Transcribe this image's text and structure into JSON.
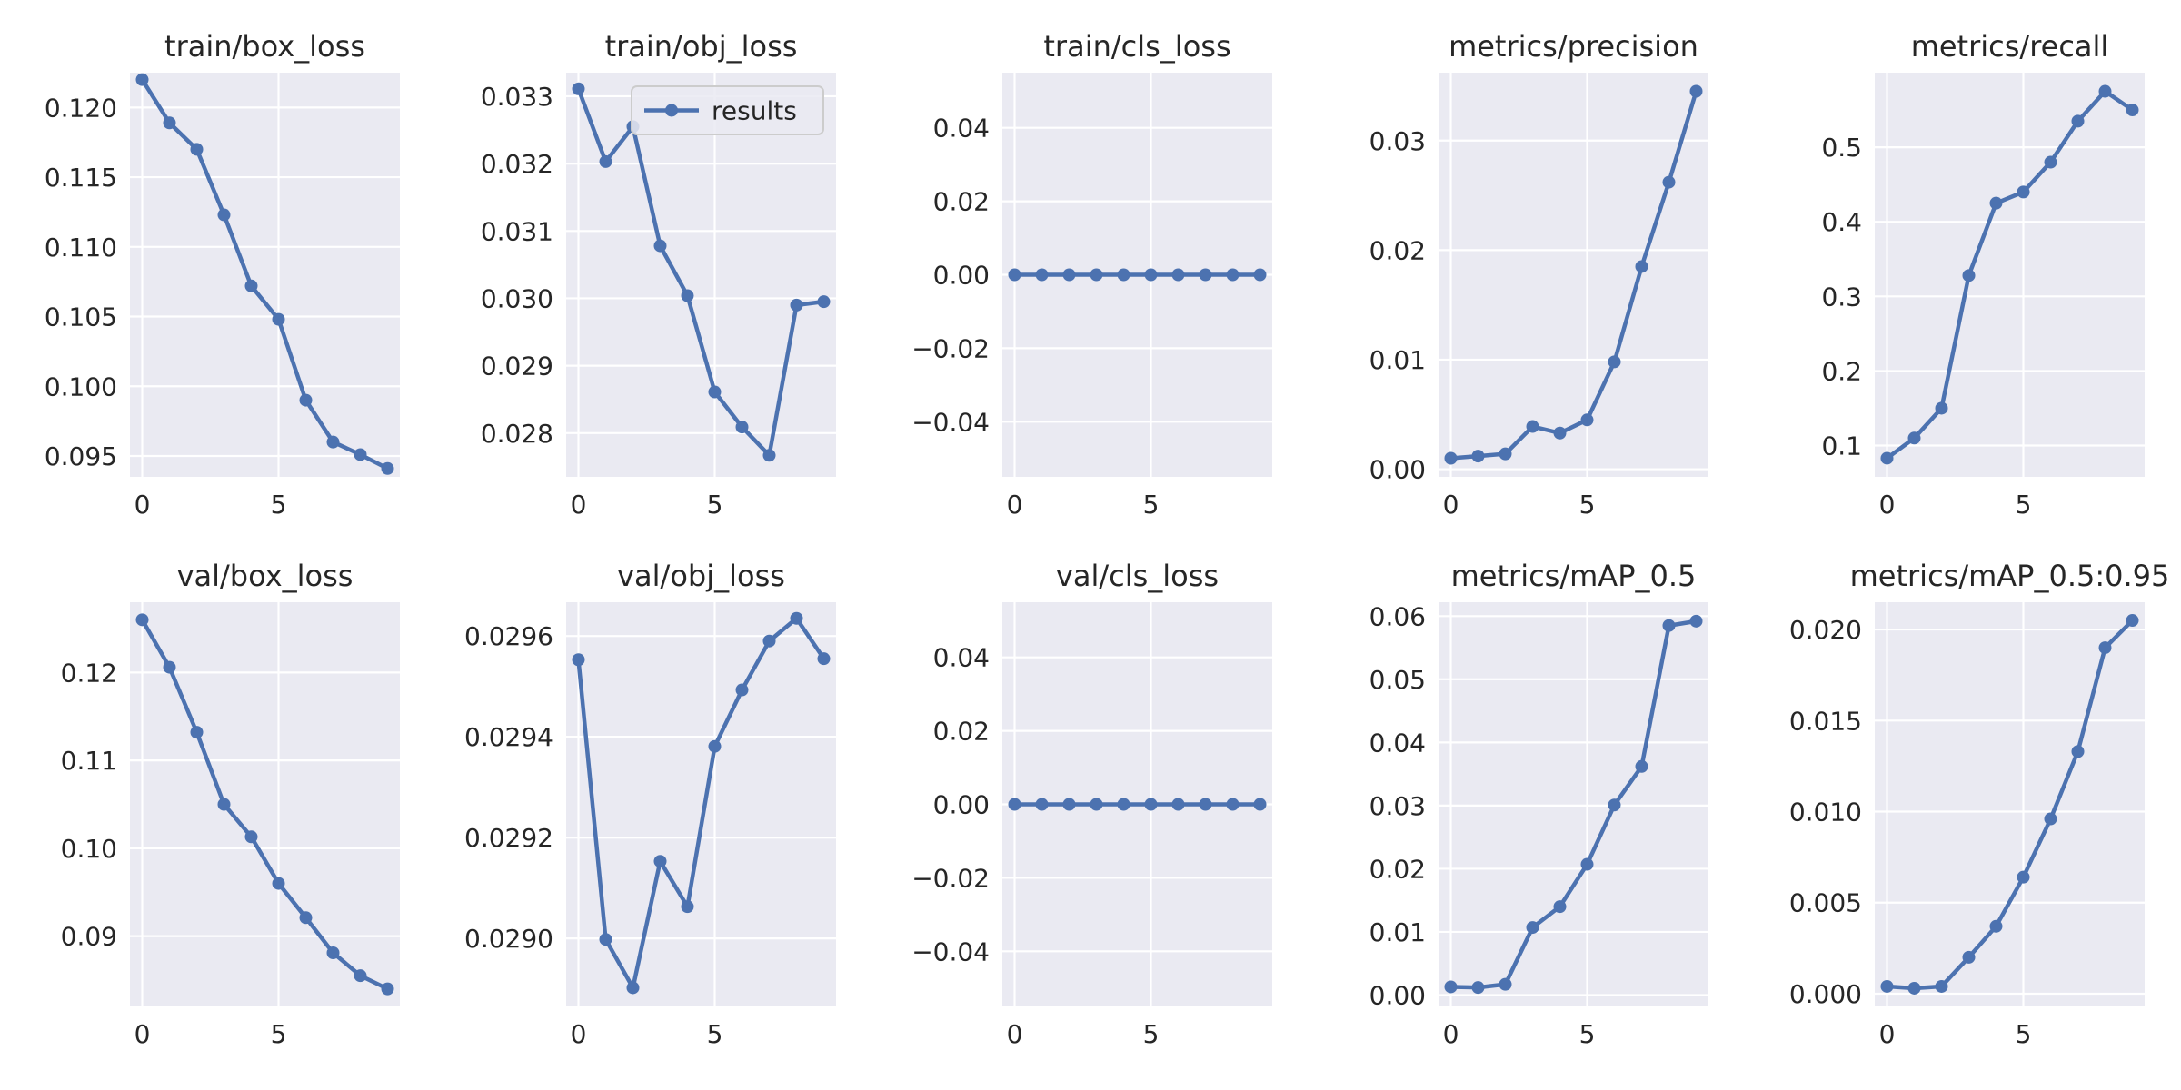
{
  "colors": {
    "line": "#4c72b0",
    "panel_bg": "#eaeaf2",
    "grid": "#ffffff",
    "text": "#262626",
    "legend_bg": "#eaeaf2",
    "legend_border": "#cccccc"
  },
  "legend": {
    "label": "results",
    "placement": "upper-right of train/obj_loss"
  },
  "chart_data": [
    {
      "type": "line",
      "title": "train/box_loss",
      "x": [
        0,
        1,
        2,
        3,
        4,
        5,
        6,
        7,
        8,
        9
      ],
      "values": [
        0.122,
        0.1189,
        0.117,
        0.1123,
        0.1072,
        0.1048,
        0.099,
        0.096,
        0.0951,
        0.0941
      ],
      "ylim": [
        0.0935,
        0.1225
      ],
      "yticks": [
        0.095,
        0.1,
        0.105,
        0.11,
        0.115,
        0.12
      ],
      "yticklabels": [
        "0.095",
        "0.100",
        "0.105",
        "0.110",
        "0.115",
        "0.120"
      ],
      "xlim": [
        -0.45,
        9.45
      ],
      "xticks": [
        0,
        5
      ],
      "xticklabels": [
        "0",
        "5"
      ]
    },
    {
      "type": "line",
      "title": "train/obj_loss",
      "x": [
        0,
        1,
        2,
        3,
        4,
        5,
        6,
        7,
        8,
        9
      ],
      "values": [
        0.03311,
        0.03203,
        0.03255,
        0.03078,
        0.03004,
        0.02861,
        0.02809,
        0.02767,
        0.0299,
        0.02995
      ],
      "ylim": [
        0.02735,
        0.03335
      ],
      "yticks": [
        0.028,
        0.029,
        0.03,
        0.031,
        0.032,
        0.033
      ],
      "yticklabels": [
        "0.028",
        "0.029",
        "0.030",
        "0.031",
        "0.032",
        "0.033"
      ],
      "xlim": [
        -0.45,
        9.45
      ],
      "xticks": [
        0,
        5
      ],
      "xticklabels": [
        "0",
        "5"
      ],
      "legend": true
    },
    {
      "type": "line",
      "title": "train/cls_loss",
      "x": [
        0,
        1,
        2,
        3,
        4,
        5,
        6,
        7,
        8,
        9
      ],
      "values": [
        0,
        0,
        0,
        0,
        0,
        0,
        0,
        0,
        0,
        0
      ],
      "ylim": [
        -0.055,
        0.055
      ],
      "yticks": [
        -0.04,
        -0.02,
        0,
        0.02,
        0.04
      ],
      "yticklabels": [
        "−0.04",
        "−0.02",
        "0.00",
        "0.02",
        "0.04"
      ],
      "xlim": [
        -0.45,
        9.45
      ],
      "xticks": [
        0,
        5
      ],
      "xticklabels": [
        "0",
        "5"
      ]
    },
    {
      "type": "line",
      "title": "metrics/precision",
      "x": [
        0,
        1,
        2,
        3,
        4,
        5,
        6,
        7,
        8,
        9
      ],
      "values": [
        0.001,
        0.0012,
        0.0014,
        0.0039,
        0.0033,
        0.0045,
        0.0098,
        0.0185,
        0.0262,
        0.0345
      ],
      "ylim": [
        -0.0007,
        0.0362
      ],
      "yticks": [
        0,
        0.01,
        0.02,
        0.03
      ],
      "yticklabels": [
        "0.00",
        "0.01",
        "0.02",
        "0.03"
      ],
      "xlim": [
        -0.45,
        9.45
      ],
      "xticks": [
        0,
        5
      ],
      "xticklabels": [
        "0",
        "5"
      ]
    },
    {
      "type": "line",
      "title": "metrics/recall",
      "x": [
        0,
        1,
        2,
        3,
        4,
        5,
        6,
        7,
        8,
        9
      ],
      "values": [
        0.083,
        0.11,
        0.15,
        0.328,
        0.425,
        0.44,
        0.48,
        0.535,
        0.575,
        0.55
      ],
      "ylim": [
        0.058,
        0.6
      ],
      "yticks": [
        0.1,
        0.2,
        0.3,
        0.4,
        0.5
      ],
      "yticklabels": [
        "0.1",
        "0.2",
        "0.3",
        "0.4",
        "0.5"
      ],
      "xlim": [
        -0.45,
        9.45
      ],
      "xticks": [
        0,
        5
      ],
      "xticklabels": [
        "0",
        "5"
      ]
    },
    {
      "type": "line",
      "title": "val/box_loss",
      "x": [
        0,
        1,
        2,
        3,
        4,
        5,
        6,
        7,
        8,
        9
      ],
      "values": [
        0.126,
        0.1206,
        0.1132,
        0.105,
        0.1013,
        0.096,
        0.0921,
        0.0881,
        0.0855,
        0.084
      ],
      "ylim": [
        0.082,
        0.128
      ],
      "yticks": [
        0.09,
        0.1,
        0.11,
        0.12
      ],
      "yticklabels": [
        "0.09",
        "0.10",
        "0.11",
        "0.12"
      ],
      "xlim": [
        -0.45,
        9.45
      ],
      "xticks": [
        0,
        5
      ],
      "xticklabels": [
        "0",
        "5"
      ]
    },
    {
      "type": "line",
      "title": "val/obj_loss",
      "x": [
        0,
        1,
        2,
        3,
        4,
        5,
        6,
        7,
        8,
        9
      ],
      "values": [
        0.029553,
        0.028998,
        0.028902,
        0.029153,
        0.029063,
        0.029381,
        0.029493,
        0.02959,
        0.029635,
        0.029555
      ],
      "ylim": [
        0.028865,
        0.029667
      ],
      "yticks": [
        0.029,
        0.0292,
        0.0294,
        0.0296
      ],
      "yticklabels": [
        "0.0290",
        "0.0292",
        "0.0294",
        "0.0296"
      ],
      "xlim": [
        -0.45,
        9.45
      ],
      "xticks": [
        0,
        5
      ],
      "xticklabels": [
        "0",
        "5"
      ]
    },
    {
      "type": "line",
      "title": "val/cls_loss",
      "x": [
        0,
        1,
        2,
        3,
        4,
        5,
        6,
        7,
        8,
        9
      ],
      "values": [
        0,
        0,
        0,
        0,
        0,
        0,
        0,
        0,
        0,
        0
      ],
      "ylim": [
        -0.055,
        0.055
      ],
      "yticks": [
        -0.04,
        -0.02,
        0,
        0.02,
        0.04
      ],
      "yticklabels": [
        "−0.04",
        "−0.02",
        "0.00",
        "0.02",
        "0.04"
      ],
      "xlim": [
        -0.45,
        9.45
      ],
      "xticks": [
        0,
        5
      ],
      "xticklabels": [
        "0",
        "5"
      ]
    },
    {
      "type": "line",
      "title": "metrics/mAP_0.5",
      "x": [
        0,
        1,
        2,
        3,
        4,
        5,
        6,
        7,
        8,
        9
      ],
      "values": [
        0.0013,
        0.0012,
        0.0017,
        0.0107,
        0.014,
        0.0207,
        0.0301,
        0.0362,
        0.0585,
        0.0592
      ],
      "ylim": [
        -0.0018,
        0.0622
      ],
      "yticks": [
        0,
        0.01,
        0.02,
        0.03,
        0.04,
        0.05,
        0.06
      ],
      "yticklabels": [
        "0.00",
        "0.01",
        "0.02",
        "0.03",
        "0.04",
        "0.05",
        "0.06"
      ],
      "xlim": [
        -0.45,
        9.45
      ],
      "xticks": [
        0,
        5
      ],
      "xticklabels": [
        "0",
        "5"
      ]
    },
    {
      "type": "line",
      "title": "metrics/mAP_0.5:0.95",
      "x": [
        0,
        1,
        2,
        3,
        4,
        5,
        6,
        7,
        8,
        9
      ],
      "values": [
        0.0004,
        0.0003,
        0.0004,
        0.002,
        0.0037,
        0.0064,
        0.0096,
        0.0133,
        0.019,
        0.0205
      ],
      "ylim": [
        -0.0007,
        0.0215
      ],
      "yticks": [
        0,
        0.005,
        0.01,
        0.015,
        0.02
      ],
      "yticklabels": [
        "0.000",
        "0.005",
        "0.010",
        "0.015",
        "0.020"
      ],
      "xlim": [
        -0.45,
        9.45
      ],
      "xticks": [
        0,
        5
      ],
      "xticklabels": [
        "0",
        "5"
      ]
    }
  ]
}
